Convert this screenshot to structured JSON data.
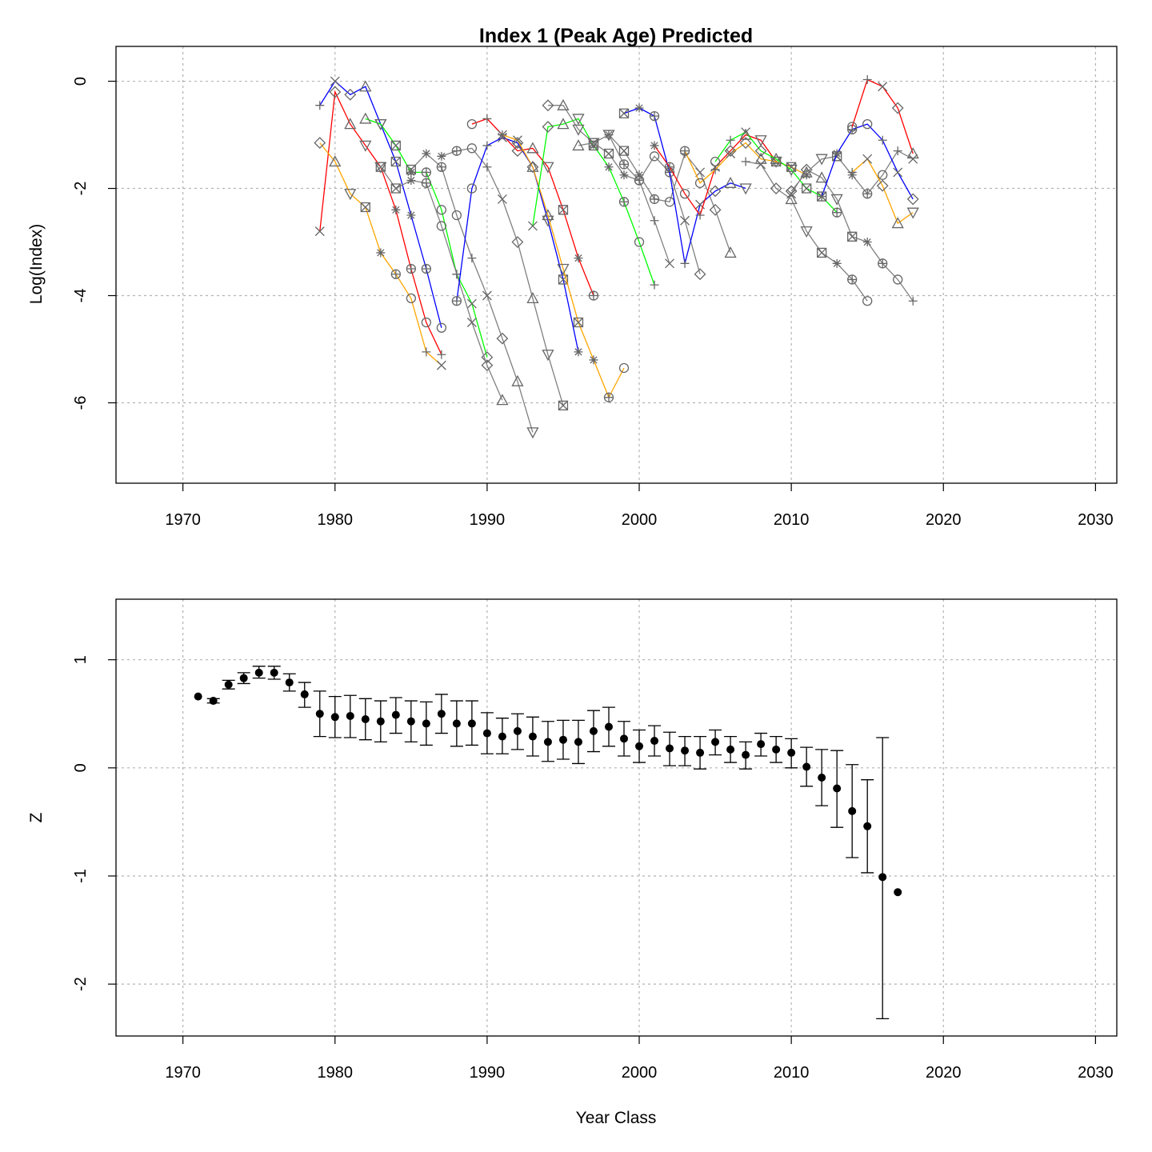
{
  "chart_data": [
    {
      "type": "line",
      "title": "Index 1 (Peak Age) Predicted",
      "xlabel": "",
      "ylabel": "Log(Index)",
      "xlim": [
        1965.6,
        2031.4
      ],
      "ylim": [
        -7.5,
        0.65
      ],
      "x_ticks": [
        1970,
        1980,
        1990,
        2000,
        2010,
        2020,
        2030
      ],
      "y_ticks": [
        0,
        -2,
        -4,
        -6
      ],
      "y_tick_labels": [
        "0",
        "-2",
        "-4",
        "-6"
      ],
      "grid": true,
      "legend": "none",
      "cohort_colors": [
        "#0000ff",
        "#ff0000",
        "#ffa500",
        "#00ff00",
        "#808080",
        "#808080",
        "#808080"
      ],
      "age_markers": [
        "plus",
        "cross",
        "diamond",
        "triangle",
        "down-triangle",
        "boxx",
        "star",
        "circle-plus",
        "circle"
      ],
      "series": [
        {
          "name": "",
          "x": [
            1979,
            1980,
            1981,
            1982,
            1983,
            1984,
            1985,
            1986,
            1987
          ],
          "values": [
            -0.45,
            0.0,
            -0.25,
            -0.1,
            -0.8,
            -1.5,
            -2.5,
            -3.5,
            -4.6
          ]
        },
        {
          "name": "",
          "x": [
            1979,
            1980,
            1981,
            1982,
            1983,
            1984,
            1985,
            1986,
            1987
          ],
          "values": [
            -2.8,
            -0.2,
            -0.8,
            -1.2,
            -1.6,
            -2.4,
            -3.5,
            -4.5,
            -5.1
          ]
        },
        {
          "name": "",
          "x": [
            1979,
            1980,
            1981,
            1982,
            1983,
            1984,
            1985,
            1986,
            1987
          ],
          "values": [
            -1.15,
            -1.5,
            -2.1,
            -2.35,
            -3.2,
            -3.6,
            -4.05,
            -5.05,
            -5.3
          ]
        },
        {
          "name": "",
          "x": [
            1982,
            1983,
            1984,
            1985,
            1986,
            1987,
            1988,
            1989,
            1990
          ],
          "values": [
            -0.7,
            -0.8,
            -1.2,
            -1.7,
            -1.7,
            -2.4,
            -3.6,
            -4.15,
            -5.15
          ]
        },
        {
          "name": "",
          "x": [
            1983,
            1984,
            1985,
            1986,
            1987,
            1988,
            1989,
            1990,
            1991
          ],
          "values": [
            -1.6,
            -2.0,
            -1.85,
            -1.9,
            -2.7,
            -3.6,
            -4.5,
            -5.3,
            -5.95
          ]
        },
        {
          "name": "",
          "x": [
            1985,
            1986,
            1987,
            1988,
            1989,
            1990,
            1991,
            1992,
            1993
          ],
          "values": [
            -1.65,
            -1.35,
            -1.6,
            -2.5,
            -3.3,
            -4.0,
            -4.8,
            -5.6,
            -6.55
          ]
        },
        {
          "name": "",
          "x": [
            1987,
            1988,
            1989,
            1990,
            1991,
            1992,
            1993,
            1994,
            1995
          ],
          "values": [
            -1.4,
            -1.3,
            -1.25,
            -1.6,
            -2.2,
            -3.0,
            -4.05,
            -5.1,
            -6.05
          ]
        },
        {
          "name": "",
          "x": [
            1988,
            1989,
            1990,
            1991,
            1992,
            1993,
            1994,
            1995,
            1996
          ],
          "values": [
            -4.1,
            -2.0,
            -1.2,
            -1.05,
            -1.15,
            -1.6,
            -2.6,
            -3.7,
            -5.05
          ]
        },
        {
          "name": "",
          "x": [
            1989,
            1990,
            1991,
            1992,
            1993,
            1994,
            1995,
            1996,
            1997
          ],
          "values": [
            -0.8,
            -0.7,
            -1.0,
            -1.3,
            -1.25,
            -1.6,
            -2.4,
            -3.3,
            -4.0
          ]
        },
        {
          "name": "",
          "x": [
            1991,
            1992,
            1993,
            1994,
            1995,
            1996,
            1997,
            1998,
            1999
          ],
          "values": [
            -1.0,
            -1.1,
            -1.6,
            -2.5,
            -3.5,
            -4.5,
            -5.2,
            -5.9,
            -5.35
          ]
        },
        {
          "name": "",
          "x": [
            1993,
            1994,
            1995,
            1996,
            1997,
            1998,
            1999,
            2000,
            2001
          ],
          "values": [
            -2.7,
            -0.85,
            -0.8,
            -0.7,
            -1.2,
            -1.6,
            -2.25,
            -3.0,
            -3.8
          ]
        },
        {
          "name": "",
          "x": [
            1994,
            1995,
            1996,
            1997,
            1998,
            1999,
            2000,
            2001,
            2002
          ],
          "values": [
            -0.45,
            -0.45,
            -0.9,
            -1.15,
            -1.0,
            -1.55,
            -1.85,
            -2.6,
            -3.4
          ]
        },
        {
          "name": "",
          "x": [
            1996,
            1997,
            1998,
            1999,
            2000,
            2001,
            2002,
            2003,
            2004
          ],
          "values": [
            -1.2,
            -1.15,
            -1.35,
            -1.75,
            -1.85,
            -1.4,
            -1.7,
            -2.6,
            -3.6
          ]
        },
        {
          "name": "",
          "x": [
            1998,
            1999,
            2000,
            2001,
            2002,
            2003,
            2004,
            2005,
            2006
          ],
          "values": [
            -1.0,
            -1.3,
            -1.75,
            -2.2,
            -2.25,
            -1.35,
            -1.7,
            -2.4,
            -3.2
          ]
        },
        {
          "name": "",
          "x": [
            1999,
            2000,
            2001,
            2002,
            2003,
            2004,
            2005,
            2006,
            2007
          ],
          "values": [
            -0.6,
            -0.5,
            -0.65,
            -1.7,
            -3.4,
            -2.3,
            -2.05,
            -1.9,
            -2.0
          ]
        },
        {
          "name": "",
          "x": [
            2001,
            2002,
            2003,
            2004,
            2005,
            2006,
            2007,
            2008,
            2009
          ],
          "values": [
            -1.2,
            -1.6,
            -2.1,
            -2.5,
            -1.6,
            -1.3,
            -1.0,
            -1.1,
            -1.5
          ]
        },
        {
          "name": "",
          "x": [
            2003,
            2004,
            2005,
            2006,
            2007,
            2008,
            2009,
            2010,
            2011
          ],
          "values": [
            -1.3,
            -1.9,
            -1.65,
            -1.35,
            -1.15,
            -1.45,
            -1.5,
            -1.6,
            -1.75
          ]
        },
        {
          "name": "",
          "x": [
            2005,
            2006,
            2007,
            2008,
            2009,
            2010,
            2011,
            2012,
            2013
          ],
          "values": [
            -1.5,
            -1.1,
            -0.95,
            -1.3,
            -1.45,
            -1.65,
            -2.0,
            -2.15,
            -2.45
          ]
        },
        {
          "name": "",
          "x": [
            2007,
            2008,
            2009,
            2010,
            2011,
            2012,
            2013,
            2014,
            2015
          ],
          "values": [
            -1.5,
            -1.55,
            -2.0,
            -2.2,
            -2.8,
            -3.2,
            -3.4,
            -3.7,
            -4.1
          ]
        },
        {
          "name": "",
          "x": [
            2010,
            2011,
            2012,
            2013,
            2014,
            2015,
            2016,
            2017,
            2018
          ],
          "values": [
            -2.1,
            -1.65,
            -1.8,
            -2.2,
            -2.9,
            -3.0,
            -3.4,
            -3.7,
            -4.1
          ]
        },
        {
          "name": "",
          "x": [
            2010,
            2011,
            2012,
            2013,
            2014,
            2015,
            2016,
            2017,
            2018
          ],
          "values": [
            -2.05,
            -1.7,
            -1.45,
            -1.4,
            -1.75,
            -2.1,
            -1.75,
            -1.3,
            -1.45
          ]
        },
        {
          "name": "",
          "x": [
            2012,
            2013,
            2014,
            2015,
            2016,
            2017,
            2018
          ],
          "values": [
            -2.15,
            -1.35,
            -0.9,
            -0.8,
            -1.1,
            -1.7,
            -2.2
          ]
        },
        {
          "name": "",
          "x": [
            2014,
            2015,
            2016,
            2017,
            2018
          ],
          "values": [
            -0.85,
            0.03,
            -0.1,
            -0.5,
            -1.35
          ]
        },
        {
          "name": "",
          "x": [
            2014,
            2015,
            2016,
            2017,
            2018
          ],
          "values": [
            -1.7,
            -1.45,
            -1.95,
            -2.65,
            -2.45
          ]
        }
      ]
    },
    {
      "type": "scatter",
      "title": "",
      "xlabel": "Year Class",
      "ylabel": "Z",
      "xlim": [
        1965.6,
        2031.4
      ],
      "ylim": [
        -2.48,
        1.56
      ],
      "x_ticks": [
        1970,
        1980,
        1990,
        2000,
        2010,
        2020,
        2030
      ],
      "y_ticks": [
        1,
        0,
        -1,
        -2
      ],
      "y_tick_labels": [
        "1",
        "0",
        "-1",
        "-2"
      ],
      "grid": true,
      "legend": "none",
      "error_bars": true,
      "points": [
        {
          "x": 1971,
          "y": 0.66,
          "lo": null,
          "hi": null
        },
        {
          "x": 1972,
          "y": 0.62,
          "lo": 0.6,
          "hi": 0.64
        },
        {
          "x": 1973,
          "y": 0.77,
          "lo": 0.73,
          "hi": 0.81
        },
        {
          "x": 1974,
          "y": 0.83,
          "lo": 0.78,
          "hi": 0.88
        },
        {
          "x": 1975,
          "y": 0.88,
          "lo": 0.83,
          "hi": 0.94
        },
        {
          "x": 1976,
          "y": 0.88,
          "lo": 0.82,
          "hi": 0.94
        },
        {
          "x": 1977,
          "y": 0.79,
          "lo": 0.71,
          "hi": 0.87
        },
        {
          "x": 1978,
          "y": 0.68,
          "lo": 0.56,
          "hi": 0.79
        },
        {
          "x": 1979,
          "y": 0.5,
          "lo": 0.29,
          "hi": 0.71
        },
        {
          "x": 1980,
          "y": 0.47,
          "lo": 0.28,
          "hi": 0.66
        },
        {
          "x": 1981,
          "y": 0.48,
          "lo": 0.28,
          "hi": 0.67
        },
        {
          "x": 1982,
          "y": 0.45,
          "lo": 0.26,
          "hi": 0.64
        },
        {
          "x": 1983,
          "y": 0.43,
          "lo": 0.24,
          "hi": 0.62
        },
        {
          "x": 1984,
          "y": 0.49,
          "lo": 0.32,
          "hi": 0.65
        },
        {
          "x": 1985,
          "y": 0.43,
          "lo": 0.24,
          "hi": 0.62
        },
        {
          "x": 1986,
          "y": 0.41,
          "lo": 0.21,
          "hi": 0.61
        },
        {
          "x": 1987,
          "y": 0.5,
          "lo": 0.32,
          "hi": 0.68
        },
        {
          "x": 1988,
          "y": 0.41,
          "lo": 0.2,
          "hi": 0.62
        },
        {
          "x": 1989,
          "y": 0.41,
          "lo": 0.21,
          "hi": 0.62
        },
        {
          "x": 1990,
          "y": 0.32,
          "lo": 0.13,
          "hi": 0.51
        },
        {
          "x": 1991,
          "y": 0.29,
          "lo": 0.13,
          "hi": 0.46
        },
        {
          "x": 1992,
          "y": 0.34,
          "lo": 0.17,
          "hi": 0.5
        },
        {
          "x": 1993,
          "y": 0.29,
          "lo": 0.11,
          "hi": 0.47
        },
        {
          "x": 1994,
          "y": 0.24,
          "lo": 0.06,
          "hi": 0.43
        },
        {
          "x": 1995,
          "y": 0.26,
          "lo": 0.08,
          "hi": 0.44
        },
        {
          "x": 1996,
          "y": 0.24,
          "lo": 0.04,
          "hi": 0.44
        },
        {
          "x": 1997,
          "y": 0.34,
          "lo": 0.15,
          "hi": 0.53
        },
        {
          "x": 1998,
          "y": 0.38,
          "lo": 0.2,
          "hi": 0.56
        },
        {
          "x": 1999,
          "y": 0.27,
          "lo": 0.11,
          "hi": 0.43
        },
        {
          "x": 2000,
          "y": 0.2,
          "lo": 0.05,
          "hi": 0.35
        },
        {
          "x": 2001,
          "y": 0.25,
          "lo": 0.11,
          "hi": 0.39
        },
        {
          "x": 2002,
          "y": 0.18,
          "lo": 0.02,
          "hi": 0.33
        },
        {
          "x": 2003,
          "y": 0.16,
          "lo": 0.02,
          "hi": 0.29
        },
        {
          "x": 2004,
          "y": 0.14,
          "lo": -0.01,
          "hi": 0.29
        },
        {
          "x": 2005,
          "y": 0.24,
          "lo": 0.12,
          "hi": 0.35
        },
        {
          "x": 2006,
          "y": 0.17,
          "lo": 0.05,
          "hi": 0.29
        },
        {
          "x": 2007,
          "y": 0.12,
          "lo": -0.01,
          "hi": 0.24
        },
        {
          "x": 2008,
          "y": 0.22,
          "lo": 0.11,
          "hi": 0.32
        },
        {
          "x": 2009,
          "y": 0.17,
          "lo": 0.05,
          "hi": 0.29
        },
        {
          "x": 2010,
          "y": 0.14,
          "lo": 0.0,
          "hi": 0.27
        },
        {
          "x": 2011,
          "y": 0.01,
          "lo": -0.17,
          "hi": 0.19
        },
        {
          "x": 2012,
          "y": -0.09,
          "lo": -0.35,
          "hi": 0.17
        },
        {
          "x": 2013,
          "y": -0.19,
          "lo": -0.55,
          "hi": 0.16
        },
        {
          "x": 2014,
          "y": -0.4,
          "lo": -0.83,
          "hi": 0.03
        },
        {
          "x": 2015,
          "y": -0.54,
          "lo": -0.97,
          "hi": -0.11
        },
        {
          "x": 2016,
          "y": -1.01,
          "lo": -2.32,
          "hi": 0.28
        },
        {
          "x": 2017,
          "y": -1.15,
          "lo": null,
          "hi": null
        }
      ]
    }
  ]
}
